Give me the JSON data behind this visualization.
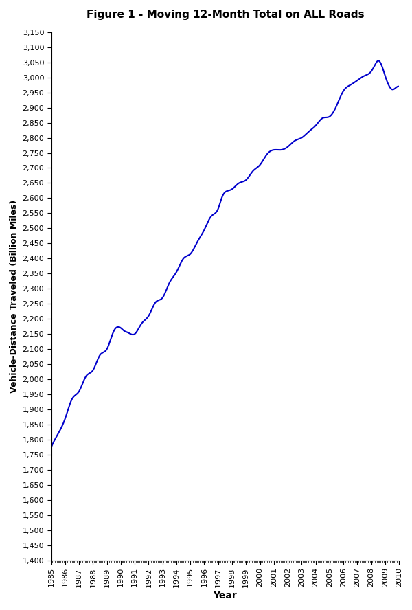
{
  "title": "Figure 1 - Moving 12-Month Total on ALL Roads",
  "xlabel": "Year",
  "ylabel": "Vehicle-Distance Traveled (Billion Miles)",
  "line_color": "#0000CC",
  "background_color": "#ffffff",
  "ylim": [
    1400,
    3150
  ],
  "ytick_step": 50,
  "key_x": [
    1985.0,
    1985.5,
    1986.0,
    1986.5,
    1987.0,
    1987.5,
    1988.0,
    1988.5,
    1989.0,
    1989.5,
    1990.0,
    1990.25,
    1990.5,
    1991.0,
    1991.5,
    1992.0,
    1992.5,
    1993.0,
    1993.5,
    1994.0,
    1994.5,
    1995.0,
    1995.5,
    1996.0,
    1996.5,
    1997.0,
    1997.25,
    1997.5,
    1997.75,
    1998.0,
    1998.5,
    1999.0,
    1999.5,
    2000.0,
    2000.5,
    2001.0,
    2001.5,
    2002.0,
    2002.5,
    2003.0,
    2003.5,
    2004.0,
    2004.5,
    2005.0,
    2005.5,
    2006.0,
    2006.5,
    2007.0,
    2007.5,
    2007.75,
    2008.0,
    2008.25,
    2008.5,
    2008.75,
    2009.0,
    2009.25,
    2009.5,
    2009.75,
    2010.0
  ],
  "key_y": [
    1775,
    1820,
    1870,
    1935,
    1960,
    2010,
    2030,
    2080,
    2100,
    2160,
    2170,
    2160,
    2155,
    2150,
    2185,
    2210,
    2255,
    2270,
    2320,
    2355,
    2400,
    2415,
    2455,
    2495,
    2540,
    2565,
    2600,
    2620,
    2625,
    2630,
    2650,
    2660,
    2690,
    2710,
    2745,
    2760,
    2760,
    2770,
    2790,
    2800,
    2820,
    2840,
    2865,
    2870,
    2905,
    2955,
    2975,
    2990,
    3005,
    3010,
    3020,
    3040,
    3055,
    3040,
    3005,
    2975,
    2960,
    2965,
    2970
  ],
  "xtick_years": [
    1985,
    1986,
    1987,
    1988,
    1989,
    1990,
    1991,
    1992,
    1993,
    1994,
    1995,
    1996,
    1997,
    1998,
    1999,
    2000,
    2001,
    2002,
    2003,
    2004,
    2005,
    2006,
    2007,
    2008,
    2009,
    2010
  ]
}
